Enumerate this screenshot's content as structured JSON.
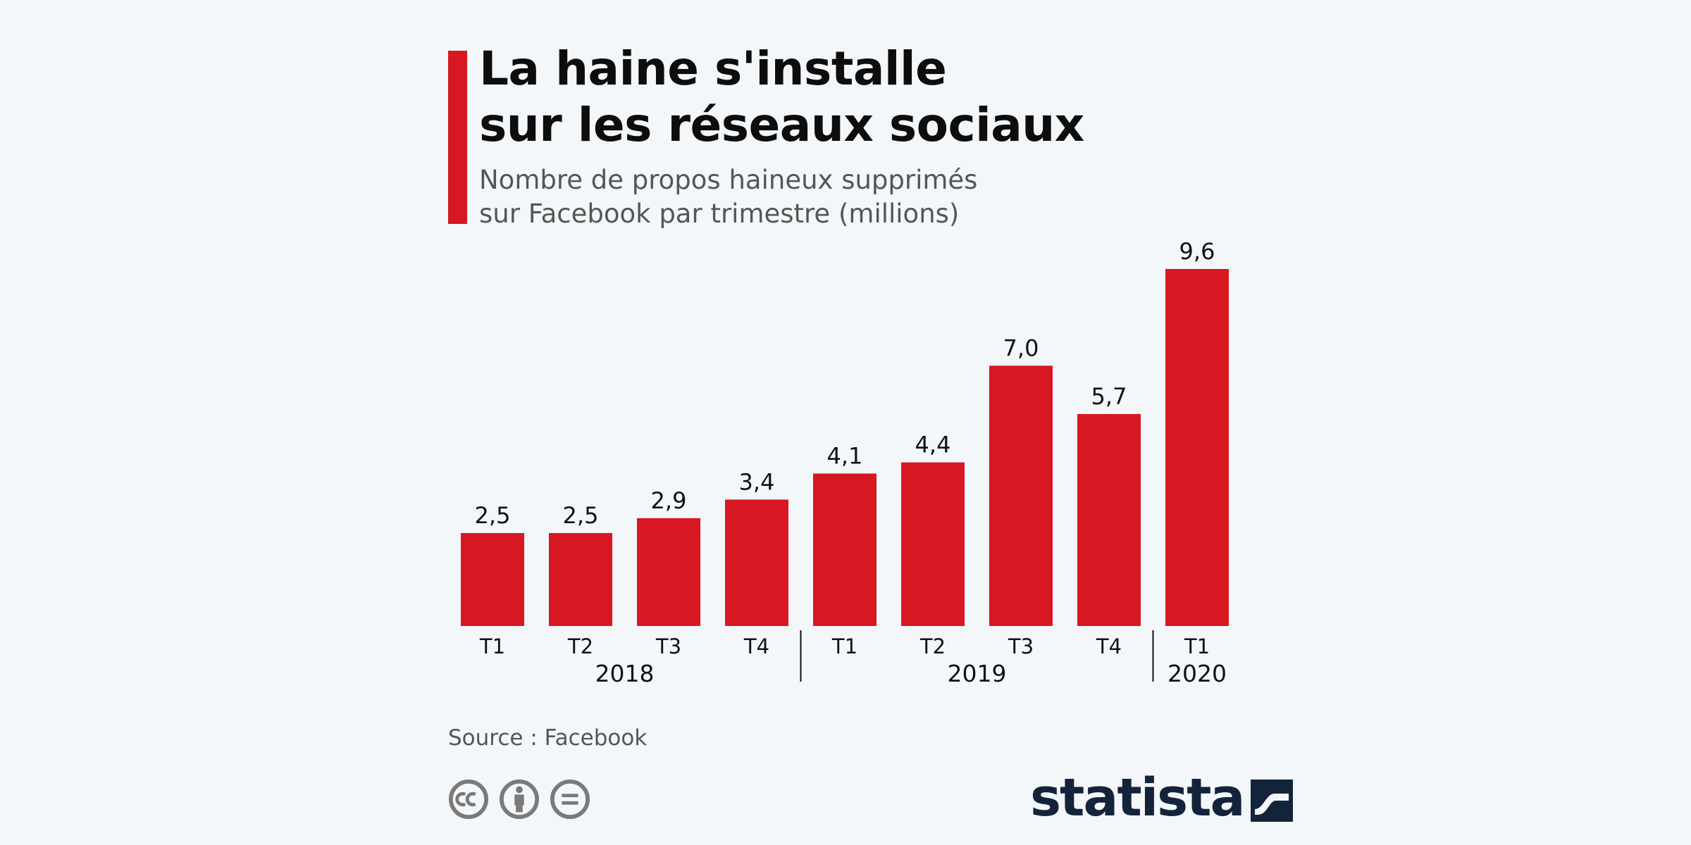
{
  "title_lines": [
    "La haine s'installe",
    "sur les réseaux sociaux"
  ],
  "subtitle_lines": [
    "Nombre de propos haineux supprimés",
    "sur Facebook par trimestre (millions)"
  ],
  "source": "Source : Facebook",
  "brand": {
    "name": "statista",
    "icon": "statista-logo-icon"
  },
  "license_icons": [
    "cc-icon",
    "attribution-icon",
    "no-derivatives-icon"
  ],
  "colors": {
    "accent": "#d71822",
    "background": "#f4f7fa",
    "text": "#111111",
    "muted": "#555555",
    "brand": "#13243a"
  },
  "chart_data": {
    "type": "bar",
    "categories": [
      "T1",
      "T2",
      "T3",
      "T4",
      "T1",
      "T2",
      "T3",
      "T4",
      "T1"
    ],
    "values": [
      2.5,
      2.5,
      2.9,
      3.4,
      4.1,
      4.4,
      7.0,
      5.7,
      9.6
    ],
    "value_labels": [
      "2,5",
      "2,5",
      "2,9",
      "3,4",
      "4,1",
      "4,4",
      "7,0",
      "5,7",
      "9,6"
    ],
    "groups": [
      {
        "label": "2018",
        "count": 4
      },
      {
        "label": "2019",
        "count": 4
      },
      {
        "label": "2020",
        "count": 1
      }
    ],
    "ylim": [
      0,
      9.6
    ],
    "grid": false,
    "legend": "none"
  }
}
